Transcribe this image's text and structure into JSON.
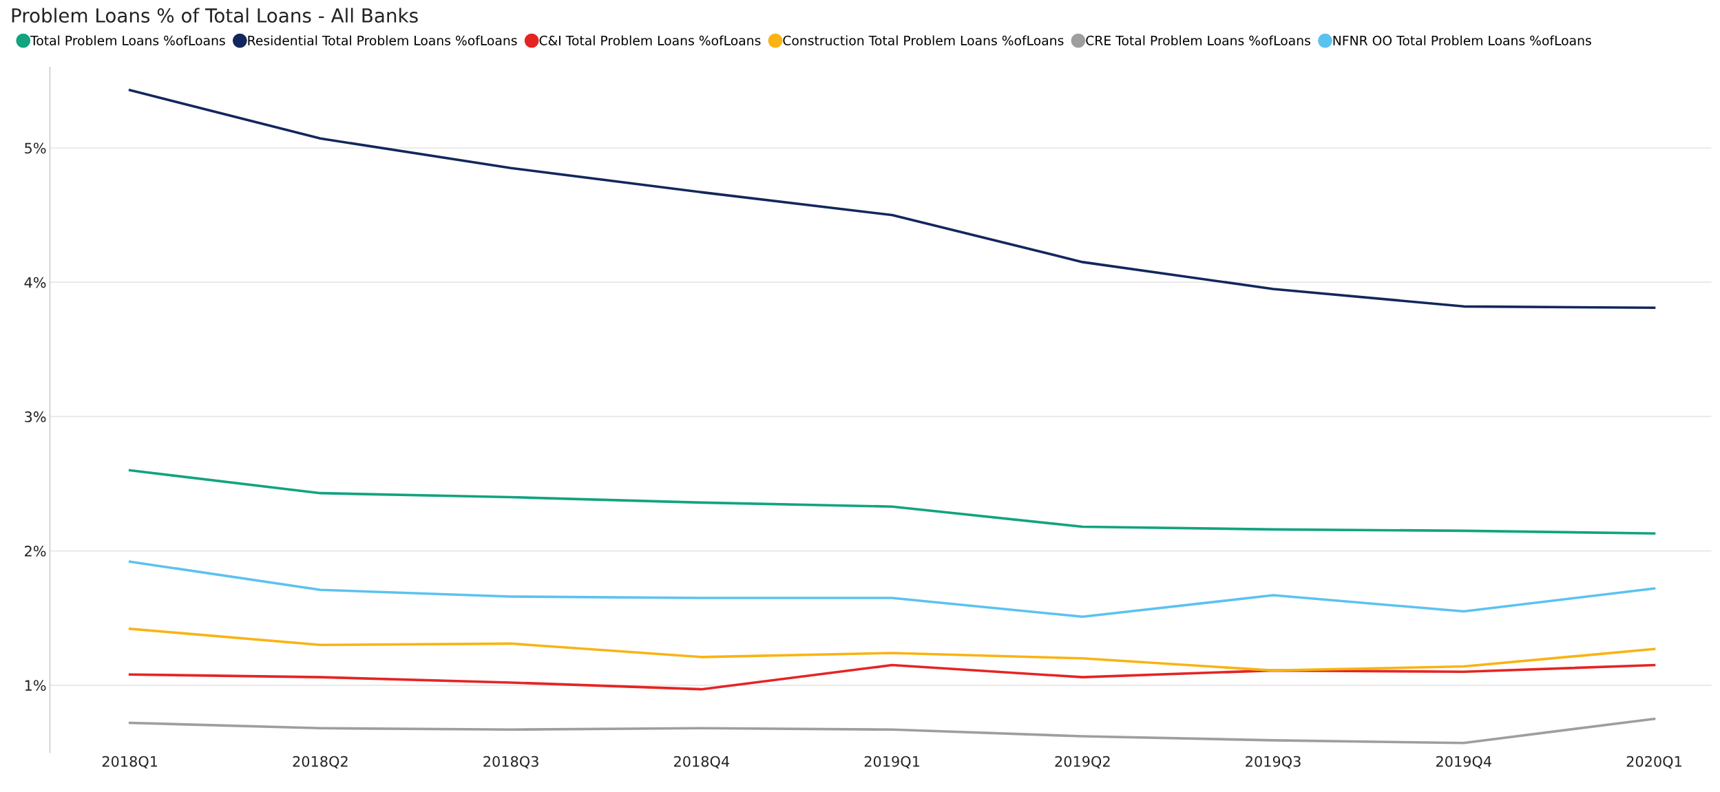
{
  "chart_data": {
    "type": "line",
    "title": "Problem Loans % of Total Loans - All Banks",
    "categories": [
      "2018Q1",
      "2018Q2",
      "2018Q3",
      "2018Q4",
      "2019Q1",
      "2019Q2",
      "2019Q3",
      "2019Q4",
      "2020Q1"
    ],
    "series": [
      {
        "name": "Total Problem Loans %ofLoans",
        "color": "#12a37f",
        "values": [
          2.6,
          2.43,
          2.4,
          2.36,
          2.33,
          2.18,
          2.16,
          2.15,
          2.13
        ]
      },
      {
        "name": "Residential Total Problem Loans %ofLoans",
        "color": "#12275c",
        "values": [
          5.43,
          5.07,
          4.85,
          4.67,
          4.5,
          4.15,
          3.95,
          3.82,
          3.81
        ]
      },
      {
        "name": "C&I Total Problem Loans %ofLoans",
        "color": "#e52424",
        "values": [
          1.08,
          1.06,
          1.02,
          0.97,
          1.15,
          1.06,
          1.11,
          1.1,
          1.15
        ]
      },
      {
        "name": "Construction Total Problem Loans %ofLoans",
        "color": "#f9b312",
        "values": [
          1.42,
          1.3,
          1.31,
          1.21,
          1.24,
          1.2,
          1.11,
          1.14,
          1.27
        ]
      },
      {
        "name": "CRE Total Problem Loans %ofLoans",
        "color": "#9e9e9e",
        "values": [
          0.72,
          0.68,
          0.67,
          0.68,
          0.67,
          0.62,
          0.59,
          0.57,
          0.75
        ]
      },
      {
        "name": "NFNR OO Total Problem Loans %ofLoans",
        "color": "#5bc2f0",
        "values": [
          1.92,
          1.71,
          1.66,
          1.65,
          1.65,
          1.51,
          1.67,
          1.55,
          1.72
        ]
      }
    ],
    "yticks": [
      {
        "value": 1,
        "label": "1%"
      },
      {
        "value": 2,
        "label": "2%"
      },
      {
        "value": 3,
        "label": "3%"
      },
      {
        "value": 4,
        "label": "4%"
      },
      {
        "value": 5,
        "label": "5%"
      }
    ],
    "ylim": [
      0.5,
      5.6
    ],
    "grid": "y",
    "legend": "top left",
    "marker": "none",
    "line_style": "solid"
  }
}
